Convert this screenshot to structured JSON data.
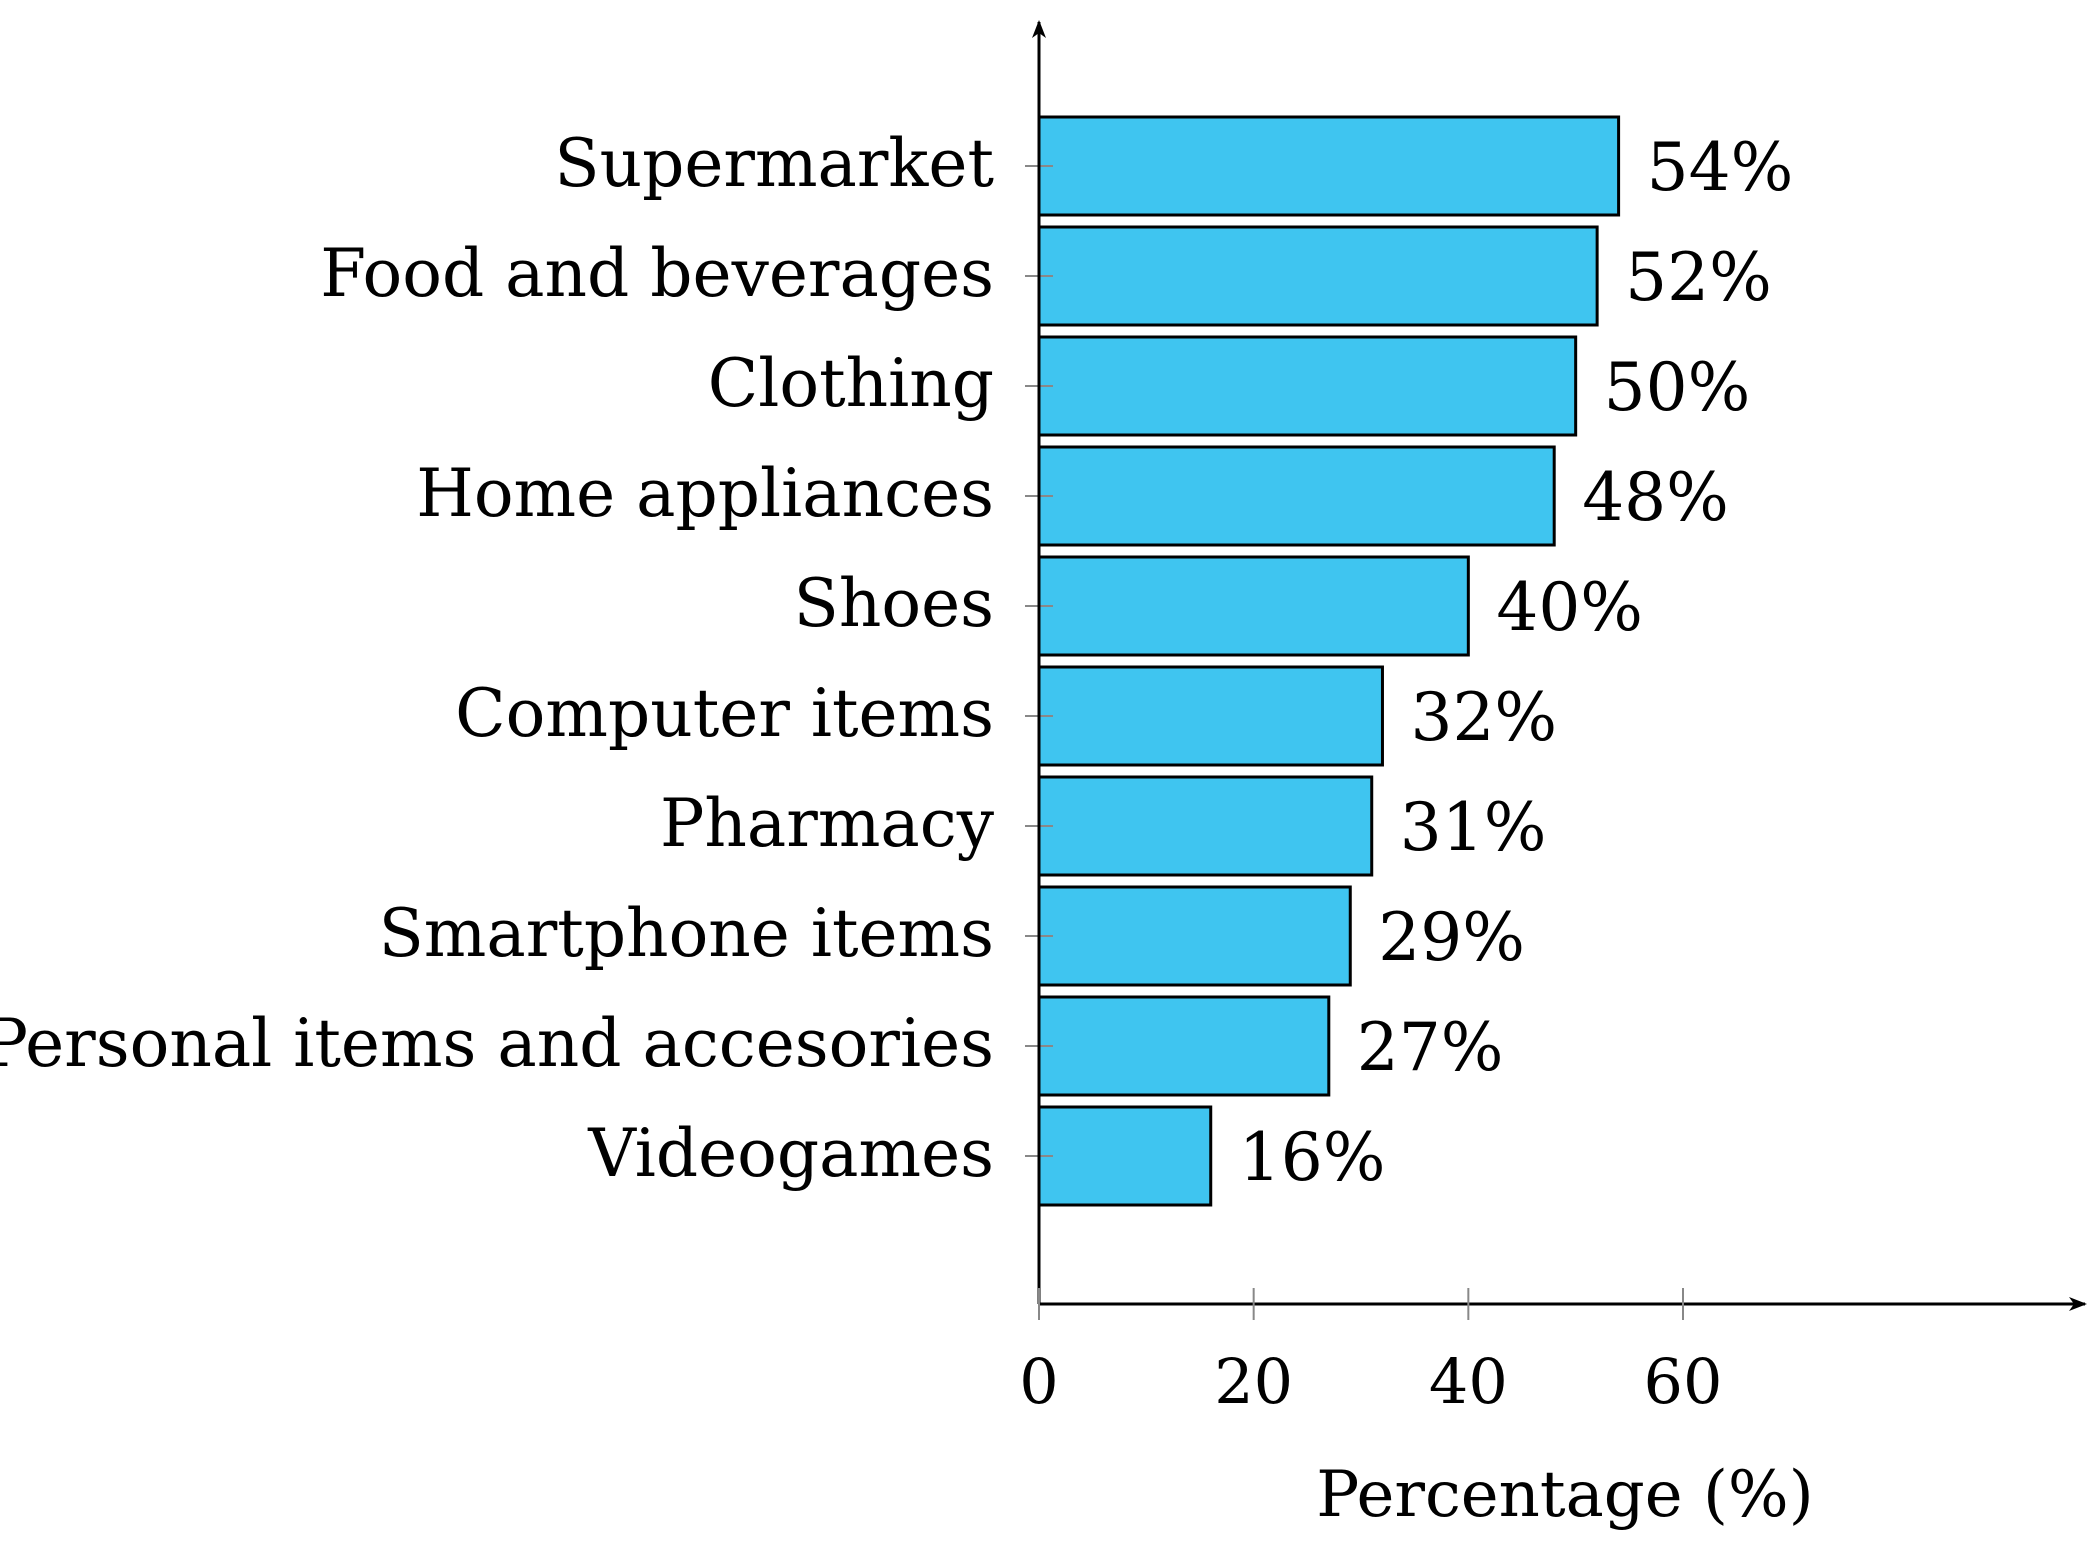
{
  "chart_data": {
    "type": "bar",
    "orientation": "horizontal",
    "categories": [
      "Supermarket",
      "Food and beverages",
      "Clothing",
      "Home appliances",
      "Shoes",
      "Computer items",
      "Pharmacy",
      "Smartphone items",
      "Personal items and accesories",
      "Videogames"
    ],
    "values": [
      54,
      52,
      50,
      48,
      40,
      32,
      31,
      29,
      27,
      16
    ],
    "data_labels": [
      "54%",
      "52%",
      "50%",
      "48%",
      "40%",
      "32%",
      "31%",
      "29%",
      "27%",
      "16%"
    ],
    "xlabel": "Percentage (%)",
    "ylabel": "",
    "xlim": [
      0,
      65
    ],
    "xticks": [
      0,
      20,
      40,
      60
    ],
    "xtick_labels": [
      "0",
      "20",
      "40",
      "60"
    ],
    "grid": false,
    "legend": false,
    "colors": {
      "bar_fill": "#3FC5F0",
      "bar_stroke": "#000000",
      "axis": "#000000",
      "text": "#000000"
    }
  }
}
